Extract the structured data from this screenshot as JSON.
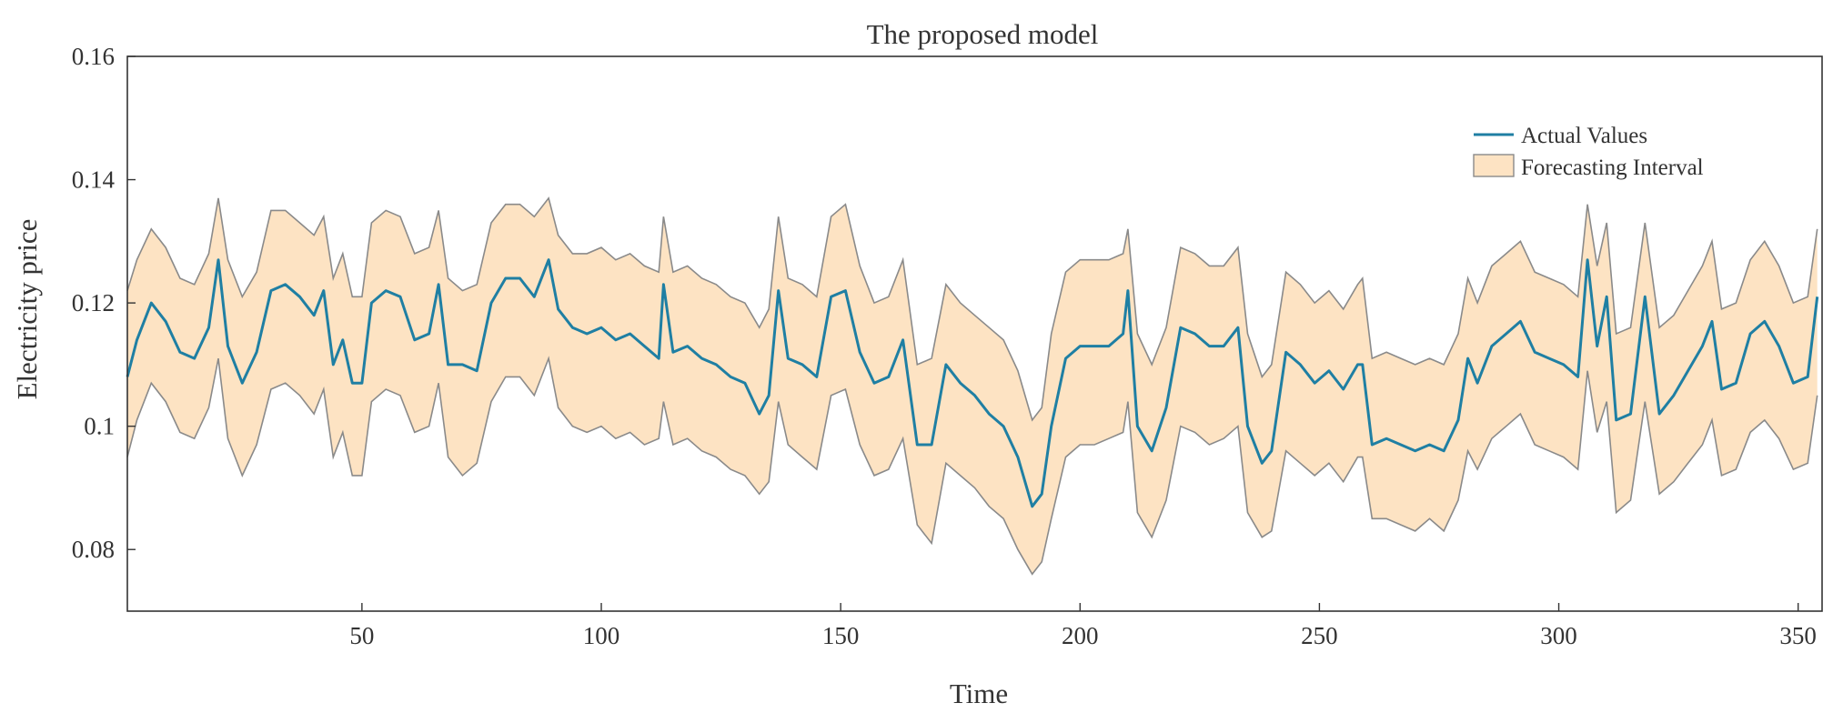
{
  "chart_data": {
    "type": "line",
    "title": "The proposed model",
    "xlabel": "Time",
    "ylabel": "Electricity price",
    "xlim": [
      1,
      355
    ],
    "ylim": [
      0.07,
      0.16
    ],
    "xticks": [
      50,
      100,
      150,
      200,
      250,
      300,
      350
    ],
    "yticks": [
      0.08,
      0.1,
      0.12,
      0.14,
      0.16
    ],
    "ytick_labels": [
      "0.08",
      "0.1",
      "0.12",
      "0.14",
      "0.16"
    ],
    "grid": false,
    "legend_position": "top-right",
    "colors": {
      "line": "#1f7fa3",
      "band_fill": "#fde3c3",
      "band_edge": "#8a8a8a",
      "axis": "#333333"
    },
    "series": [
      {
        "name": "Actual Values",
        "kind": "line",
        "x": [
          1,
          3,
          6,
          9,
          12,
          15,
          18,
          20,
          22,
          25,
          28,
          31,
          34,
          37,
          40,
          42,
          44,
          46,
          48,
          50,
          52,
          55,
          58,
          61,
          64,
          66,
          68,
          71,
          74,
          77,
          80,
          83,
          86,
          89,
          91,
          94,
          97,
          100,
          103,
          106,
          109,
          112,
          113,
          115,
          118,
          121,
          124,
          127,
          130,
          133,
          135,
          137,
          139,
          142,
          145,
          148,
          151,
          154,
          157,
          160,
          163,
          166,
          169,
          172,
          175,
          178,
          181,
          184,
          187,
          190,
          192,
          194,
          197,
          200,
          203,
          206,
          209,
          210,
          212,
          215,
          218,
          221,
          224,
          227,
          230,
          233,
          235,
          238,
          240,
          243,
          246,
          249,
          252,
          255,
          258,
          259,
          261,
          264,
          267,
          270,
          273,
          276,
          279,
          281,
          283,
          286,
          289,
          292,
          295,
          298,
          301,
          304,
          306,
          308,
          310,
          312,
          315,
          318,
          321,
          324,
          327,
          330,
          332,
          334,
          337,
          340,
          343,
          346,
          349,
          352,
          354
        ],
        "y": [
          0.108,
          0.114,
          0.12,
          0.117,
          0.112,
          0.111,
          0.116,
          0.127,
          0.113,
          0.107,
          0.112,
          0.122,
          0.123,
          0.121,
          0.118,
          0.122,
          0.11,
          0.114,
          0.107,
          0.107,
          0.12,
          0.122,
          0.121,
          0.114,
          0.115,
          0.123,
          0.11,
          0.11,
          0.109,
          0.12,
          0.124,
          0.124,
          0.121,
          0.127,
          0.119,
          0.116,
          0.115,
          0.116,
          0.114,
          0.115,
          0.113,
          0.111,
          0.123,
          0.112,
          0.113,
          0.111,
          0.11,
          0.108,
          0.107,
          0.102,
          0.105,
          0.122,
          0.111,
          0.11,
          0.108,
          0.121,
          0.122,
          0.112,
          0.107,
          0.108,
          0.114,
          0.097,
          0.097,
          0.11,
          0.107,
          0.105,
          0.102,
          0.1,
          0.095,
          0.087,
          0.089,
          0.1,
          0.111,
          0.113,
          0.113,
          0.113,
          0.115,
          0.122,
          0.1,
          0.096,
          0.103,
          0.116,
          0.115,
          0.113,
          0.113,
          0.116,
          0.1,
          0.094,
          0.096,
          0.112,
          0.11,
          0.107,
          0.109,
          0.106,
          0.11,
          0.11,
          0.097,
          0.098,
          0.097,
          0.096,
          0.097,
          0.096,
          0.101,
          0.111,
          0.107,
          0.113,
          0.115,
          0.117,
          0.112,
          0.111,
          0.11,
          0.108,
          0.127,
          0.113,
          0.121,
          0.101,
          0.102,
          0.121,
          0.102,
          0.105,
          0.109,
          0.113,
          0.117,
          0.106,
          0.107,
          0.115,
          0.117,
          0.113,
          0.107,
          0.108,
          0.121
        ]
      },
      {
        "name": "Forecasting Interval",
        "kind": "band",
        "x": [
          1,
          3,
          6,
          9,
          12,
          15,
          18,
          20,
          22,
          25,
          28,
          31,
          34,
          37,
          40,
          42,
          44,
          46,
          48,
          50,
          52,
          55,
          58,
          61,
          64,
          66,
          68,
          71,
          74,
          77,
          80,
          83,
          86,
          89,
          91,
          94,
          97,
          100,
          103,
          106,
          109,
          112,
          113,
          115,
          118,
          121,
          124,
          127,
          130,
          133,
          135,
          137,
          139,
          142,
          145,
          148,
          151,
          154,
          157,
          160,
          163,
          166,
          169,
          172,
          175,
          178,
          181,
          184,
          187,
          190,
          192,
          194,
          197,
          200,
          203,
          206,
          209,
          210,
          212,
          215,
          218,
          221,
          224,
          227,
          230,
          233,
          235,
          238,
          240,
          243,
          246,
          249,
          252,
          255,
          258,
          259,
          261,
          264,
          267,
          270,
          273,
          276,
          279,
          281,
          283,
          286,
          289,
          292,
          295,
          298,
          301,
          304,
          306,
          308,
          310,
          312,
          315,
          318,
          321,
          324,
          327,
          330,
          332,
          334,
          337,
          340,
          343,
          346,
          349,
          352,
          354
        ],
        "lower": [
          0.095,
          0.101,
          0.107,
          0.104,
          0.099,
          0.098,
          0.103,
          0.111,
          0.098,
          0.092,
          0.097,
          0.106,
          0.107,
          0.105,
          0.102,
          0.106,
          0.095,
          0.099,
          0.092,
          0.092,
          0.104,
          0.106,
          0.105,
          0.099,
          0.1,
          0.107,
          0.095,
          0.092,
          0.094,
          0.104,
          0.108,
          0.108,
          0.105,
          0.111,
          0.103,
          0.1,
          0.099,
          0.1,
          0.098,
          0.099,
          0.097,
          0.098,
          0.104,
          0.097,
          0.098,
          0.096,
          0.095,
          0.093,
          0.092,
          0.089,
          0.091,
          0.104,
          0.097,
          0.095,
          0.093,
          0.105,
          0.106,
          0.097,
          0.092,
          0.093,
          0.098,
          0.084,
          0.081,
          0.094,
          0.092,
          0.09,
          0.087,
          0.085,
          0.08,
          0.076,
          0.078,
          0.085,
          0.095,
          0.097,
          0.097,
          0.098,
          0.099,
          0.104,
          0.086,
          0.082,
          0.088,
          0.1,
          0.099,
          0.097,
          0.098,
          0.1,
          0.086,
          0.082,
          0.083,
          0.096,
          0.094,
          0.092,
          0.094,
          0.091,
          0.095,
          0.095,
          0.085,
          0.085,
          0.084,
          0.083,
          0.085,
          0.083,
          0.088,
          0.096,
          0.093,
          0.098,
          0.1,
          0.102,
          0.097,
          0.096,
          0.095,
          0.093,
          0.109,
          0.099,
          0.104,
          0.086,
          0.088,
          0.104,
          0.089,
          0.091,
          0.094,
          0.097,
          0.101,
          0.092,
          0.093,
          0.099,
          0.101,
          0.098,
          0.093,
          0.094,
          0.105
        ],
        "upper": [
          0.122,
          0.127,
          0.132,
          0.129,
          0.124,
          0.123,
          0.128,
          0.137,
          0.127,
          0.121,
          0.125,
          0.135,
          0.135,
          0.133,
          0.131,
          0.134,
          0.124,
          0.128,
          0.121,
          0.121,
          0.133,
          0.135,
          0.134,
          0.128,
          0.129,
          0.135,
          0.124,
          0.122,
          0.123,
          0.133,
          0.136,
          0.136,
          0.134,
          0.137,
          0.131,
          0.128,
          0.128,
          0.129,
          0.127,
          0.128,
          0.126,
          0.125,
          0.134,
          0.125,
          0.126,
          0.124,
          0.123,
          0.121,
          0.12,
          0.116,
          0.119,
          0.134,
          0.124,
          0.123,
          0.121,
          0.134,
          0.136,
          0.126,
          0.12,
          0.121,
          0.127,
          0.11,
          0.111,
          0.123,
          0.12,
          0.118,
          0.116,
          0.114,
          0.109,
          0.101,
          0.103,
          0.115,
          0.125,
          0.127,
          0.127,
          0.127,
          0.128,
          0.132,
          0.115,
          0.11,
          0.116,
          0.129,
          0.128,
          0.126,
          0.126,
          0.129,
          0.115,
          0.108,
          0.11,
          0.125,
          0.123,
          0.12,
          0.122,
          0.119,
          0.123,
          0.124,
          0.111,
          0.112,
          0.111,
          0.11,
          0.111,
          0.11,
          0.115,
          0.124,
          0.12,
          0.126,
          0.128,
          0.13,
          0.125,
          0.124,
          0.123,
          0.121,
          0.136,
          0.126,
          0.133,
          0.115,
          0.116,
          0.133,
          0.116,
          0.118,
          0.122,
          0.126,
          0.13,
          0.119,
          0.12,
          0.127,
          0.13,
          0.126,
          0.12,
          0.121,
          0.132
        ]
      }
    ]
  }
}
